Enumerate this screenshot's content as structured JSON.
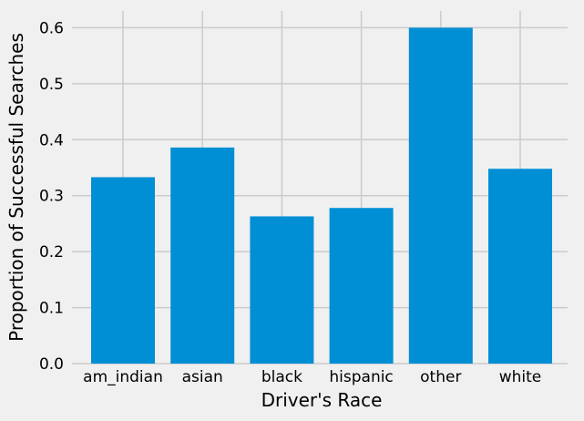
{
  "chart_data": {
    "type": "bar",
    "title": "",
    "xlabel": "Driver's Race",
    "ylabel": "Proportion of Successful Searches",
    "categories": [
      "am_indian",
      "asian",
      "black",
      "hispanic",
      "other",
      "white"
    ],
    "values": [
      0.333,
      0.386,
      0.263,
      0.278,
      0.6,
      0.348
    ],
    "ylim": [
      0,
      0.63
    ],
    "yticks": [
      0.0,
      0.1,
      0.2,
      0.3,
      0.4,
      0.5,
      0.6
    ],
    "ytick_labels": [
      "0.0",
      "0.1",
      "0.2",
      "0.3",
      "0.4",
      "0.5",
      "0.6"
    ],
    "grid": true,
    "colors": {
      "bar": "#008fd5",
      "background": "#f0f0f0",
      "grid": "#cbcbcb"
    }
  }
}
